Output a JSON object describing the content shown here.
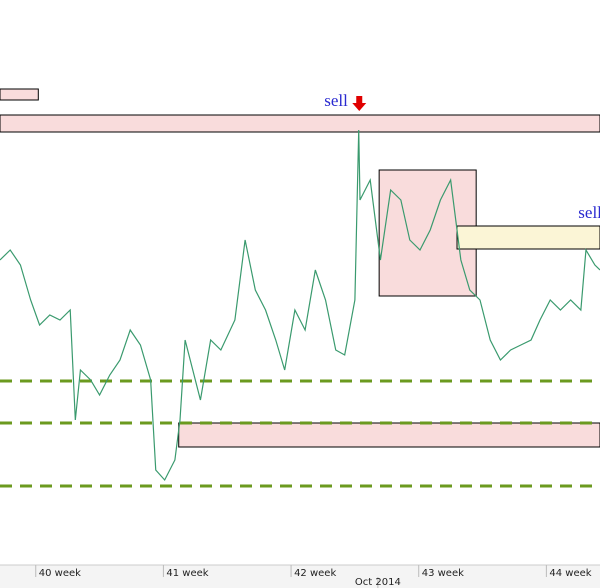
{
  "chart_data": {
    "type": "line",
    "x": [
      39.72,
      39.8,
      39.88,
      39.96,
      40.03,
      40.11,
      40.19,
      40.27,
      40.31,
      40.35,
      40.43,
      40.5,
      40.58,
      40.66,
      40.74,
      40.82,
      40.9,
      40.94,
      41.01,
      41.09,
      41.13,
      41.17,
      41.25,
      41.29,
      41.37,
      41.45,
      41.56,
      41.64,
      41.72,
      41.8,
      41.88,
      41.95,
      42.03,
      42.11,
      42.19,
      42.27,
      42.35,
      42.42,
      42.5,
      42.53,
      42.54,
      42.62,
      42.7,
      42.78,
      42.86,
      42.93,
      43.01,
      43.09,
      43.17,
      43.25,
      43.33,
      43.4,
      43.48,
      43.56,
      43.64,
      43.72,
      43.8,
      43.88,
      43.95,
      44.03,
      44.11,
      44.19,
      44.27,
      44.31,
      44.38,
      44.42
    ],
    "series": [
      {
        "color": "#3a9a6e",
        "values": [
          305,
          315,
          300,
          265,
          240,
          250,
          245,
          255,
          145,
          195,
          185,
          170,
          190,
          205,
          235,
          220,
          185,
          95,
          85,
          105,
          145,
          225,
          185,
          165,
          225,
          215,
          245,
          325,
          275,
          255,
          225,
          195,
          255,
          235,
          295,
          265,
          215,
          210,
          265,
          435,
          365,
          385,
          305,
          375,
          365,
          325,
          315,
          335,
          365,
          385,
          305,
          275,
          265,
          225,
          205,
          215,
          220,
          225,
          245,
          265,
          255,
          265,
          255,
          315,
          300,
          295
        ]
      }
    ],
    "xlim": [
      39.72,
      44.42
    ],
    "ylim": [
      0,
      565
    ],
    "xticks": [
      {
        "value": 40,
        "label": "40 week"
      },
      {
        "value": 41,
        "label": "41 week"
      },
      {
        "value": 42,
        "label": "42 week"
      },
      {
        "value": 43,
        "label": "43 week"
      },
      {
        "value": 44,
        "label": "44 week"
      }
    ],
    "month_label": {
      "value": 42.68,
      "label": "Oct 2014"
    },
    "zones": [
      {
        "x": [
          39.72,
          40.02
        ],
        "y": [
          465,
          476
        ],
        "color": "#f9dcdc"
      },
      {
        "x": [
          39.72,
          44.42
        ],
        "y": [
          433,
          450
        ],
        "color": "#f9dcdc"
      },
      {
        "x": [
          42.69,
          43.45
        ],
        "y": [
          269,
          395
        ],
        "color": "#f9dcdc"
      },
      {
        "x": [
          43.3,
          44.42
        ],
        "y": [
          316,
          339
        ],
        "color": "#fbf5d6"
      },
      {
        "x": [
          41.12,
          44.42
        ],
        "y": [
          118,
          142
        ],
        "color": "#f9dcdc"
      }
    ],
    "levels": [
      184,
      142,
      79
    ],
    "level_color": "#6b9a1f",
    "annotations": [
      {
        "text": "sell",
        "x": 42.26,
        "y": 463
      },
      {
        "text": "sell",
        "x": 44.25,
        "y": 351
      }
    ]
  }
}
